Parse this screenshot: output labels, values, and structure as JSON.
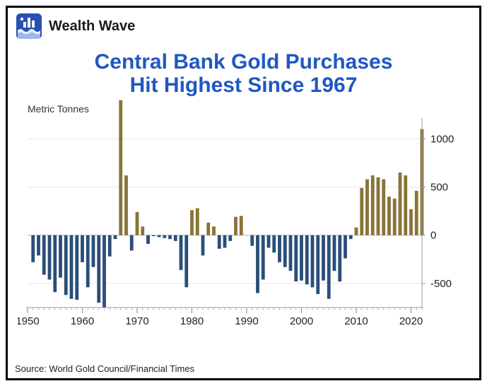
{
  "header": {
    "brand": "Wealth Wave",
    "logo_bg": "#2850b3",
    "logo_fg": "#ffffff"
  },
  "title": {
    "line1": "Central Bank Gold Purchases",
    "line2": "Hit Highest Since 1967",
    "color": "#1f57c3",
    "fontsize": 30
  },
  "chart": {
    "type": "bar",
    "y_unit_label": "Metric Tonnes",
    "y_unit_fontsize": 14,
    "y_unit_color": "#333333",
    "background_color": "#ffffff",
    "gridline_color": "#e6e6e6",
    "axis_color": "#9a9a9a",
    "tick_label_color": "#222222",
    "tick_label_fontsize": 15,
    "x_range": [
      1950,
      2022
    ],
    "x_ticks": [
      1950,
      1960,
      1970,
      1980,
      1990,
      2000,
      2010,
      2020
    ],
    "y_range": [
      -750,
      1200
    ],
    "y_gridlines": [
      -500,
      0,
      500,
      1000
    ],
    "y_tick_labels": [
      "-500",
      "0",
      "500",
      "1000"
    ],
    "positive_color": "#887436",
    "negative_color": "#2a4e7a",
    "bar_width_ratio": 0.62,
    "years": [
      1950,
      1951,
      1952,
      1953,
      1954,
      1955,
      1956,
      1957,
      1958,
      1959,
      1960,
      1961,
      1962,
      1963,
      1964,
      1965,
      1966,
      1967,
      1968,
      1969,
      1970,
      1971,
      1972,
      1973,
      1974,
      1975,
      1976,
      1977,
      1978,
      1979,
      1980,
      1981,
      1982,
      1983,
      1984,
      1985,
      1986,
      1987,
      1988,
      1989,
      1990,
      1991,
      1992,
      1993,
      1994,
      1995,
      1996,
      1997,
      1998,
      1999,
      2000,
      2001,
      2002,
      2003,
      2004,
      2005,
      2006,
      2007,
      2008,
      2009,
      2010,
      2011,
      2012,
      2013,
      2014,
      2015,
      2016,
      2017,
      2018,
      2019,
      2020,
      2021,
      2022
    ],
    "values": [
      0,
      -280,
      -210,
      -410,
      -460,
      -590,
      -440,
      -620,
      -660,
      -670,
      -280,
      -540,
      -330,
      -700,
      -750,
      -220,
      -40,
      1400,
      620,
      -160,
      240,
      90,
      -90,
      -10,
      -20,
      -30,
      -40,
      -60,
      -360,
      -540,
      260,
      280,
      -210,
      130,
      90,
      -140,
      -130,
      -60,
      190,
      200,
      0,
      -110,
      -600,
      -460,
      -130,
      -180,
      -280,
      -330,
      -370,
      -480,
      -470,
      -510,
      -540,
      -610,
      -470,
      -660,
      -370,
      -480,
      -240,
      -40,
      80,
      490,
      580,
      620,
      600,
      580,
      400,
      380,
      650,
      620,
      270,
      460,
      1100
    ]
  },
  "source": {
    "text": "Source: World Gold Council/Financial Times",
    "color": "#222222",
    "fontsize": 13
  }
}
